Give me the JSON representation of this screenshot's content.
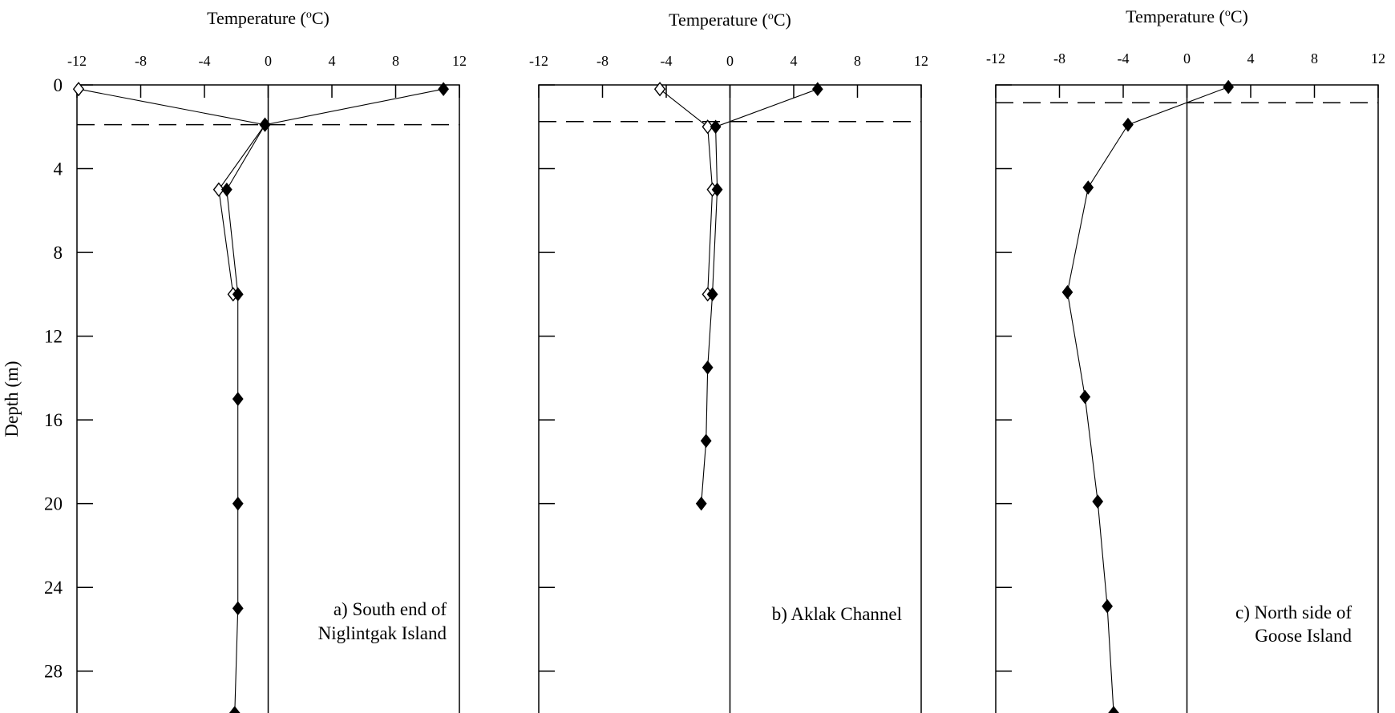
{
  "chart_data": [
    {
      "type": "line",
      "xlabel": "Temperature (oC)",
      "ylabel": "Depth (m)",
      "xlim": [
        -12,
        12
      ],
      "ylim": [
        0,
        30
      ],
      "xticks": [
        -12,
        -8,
        -4,
        0,
        4,
        8,
        12
      ],
      "yticks": [
        0,
        4,
        8,
        12,
        16,
        20,
        24,
        28
      ],
      "xtick_labels": [
        "-12",
        "-8",
        "-4",
        "0",
        "4",
        "8",
        "12"
      ],
      "ytick_labels": [
        "0",
        "4",
        "8",
        "12",
        "16",
        "20",
        "24",
        "28"
      ],
      "annotation": [
        "a) South end of",
        "Niglintgak Island"
      ],
      "reference_depth": 1.9,
      "series": [
        {
          "marker": "filled-diamond",
          "points": [
            [
              11,
              0.2
            ],
            [
              -0.2,
              1.9
            ],
            [
              -2.6,
              5
            ],
            [
              -1.9,
              10
            ],
            [
              -1.9,
              15
            ],
            [
              -1.9,
              20
            ],
            [
              -1.9,
              25
            ],
            [
              -2.1,
              30
            ]
          ]
        },
        {
          "marker": "open-diamond",
          "points": [
            [
              -11.9,
              0.2
            ],
            [
              -0.2,
              1.9
            ],
            [
              -3.1,
              5
            ],
            [
              -2.2,
              10
            ]
          ]
        }
      ]
    },
    {
      "type": "line",
      "xlabel": "Temperature (oC)",
      "xlim": [
        -12,
        12
      ],
      "ylim": [
        0,
        30
      ],
      "xticks": [
        -12,
        -8,
        -4,
        0,
        4,
        8,
        12
      ],
      "yticks": [
        0,
        4,
        8,
        12,
        16,
        20,
        24,
        28
      ],
      "xtick_labels": [
        "-12",
        "-8",
        "-4",
        "0",
        "4",
        "8",
        "12"
      ],
      "annotation": [
        "b) Aklak Channel"
      ],
      "reference_depth": 1.75,
      "series": [
        {
          "marker": "filled-diamond",
          "points": [
            [
              5.5,
              0.2
            ],
            [
              -0.9,
              2
            ],
            [
              -0.8,
              5
            ],
            [
              -1.1,
              10
            ],
            [
              -1.4,
              13.5
            ],
            [
              -1.5,
              17
            ],
            [
              -1.8,
              20
            ]
          ]
        },
        {
          "marker": "open-diamond",
          "points": [
            [
              -4.4,
              0.2
            ],
            [
              -1.4,
              2
            ],
            [
              -1.1,
              5
            ],
            [
              -1.4,
              10
            ]
          ]
        }
      ]
    },
    {
      "type": "line",
      "xlabel": "Temperature (oC)",
      "xlim": [
        -12,
        12
      ],
      "ylim": [
        0,
        30
      ],
      "xticks": [
        -12,
        -8,
        -4,
        0,
        4,
        8,
        12
      ],
      "yticks": [
        0,
        4,
        8,
        12,
        16,
        20,
        24,
        28
      ],
      "xtick_labels": [
        "-12",
        "-8",
        "-4",
        "0",
        "4",
        "8",
        "12"
      ],
      "annotation": [
        "c) North side of",
        "Goose Island"
      ],
      "reference_depth": 0.85,
      "series": [
        {
          "marker": "filled-diamond",
          "points": [
            [
              2.6,
              0.1
            ],
            [
              -3.7,
              1.9
            ],
            [
              -6.2,
              4.9
            ],
            [
              -7.5,
              9.9
            ],
            [
              -6.4,
              14.9
            ],
            [
              -5.6,
              19.9
            ],
            [
              -5,
              24.9
            ],
            [
              -4.6,
              30
            ]
          ]
        }
      ]
    }
  ]
}
